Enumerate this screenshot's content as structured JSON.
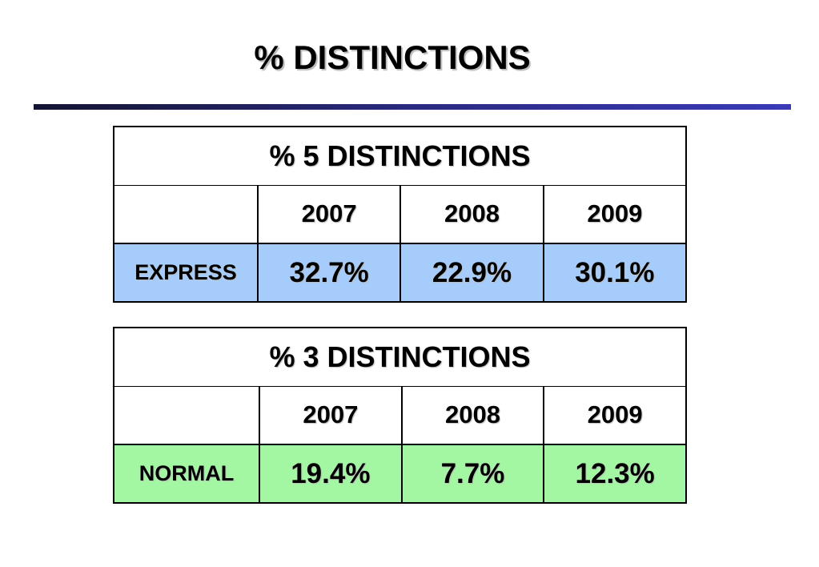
{
  "title": "% DISTINCTIONS",
  "tables": [
    {
      "title": "% 5 DISTINCTIONS",
      "headers": [
        "2007",
        "2008",
        "2009"
      ],
      "row": {
        "label": "EXPRESS",
        "cells": [
          "32.7%",
          "22.9%",
          "30.1%"
        ]
      }
    },
    {
      "title": "% 3 DISTINCTIONS",
      "headers": [
        "2007",
        "2008",
        "2009"
      ],
      "row": {
        "label": "NORMAL",
        "cells": [
          "19.4%",
          "7.7%",
          "12.3%"
        ]
      }
    }
  ]
}
